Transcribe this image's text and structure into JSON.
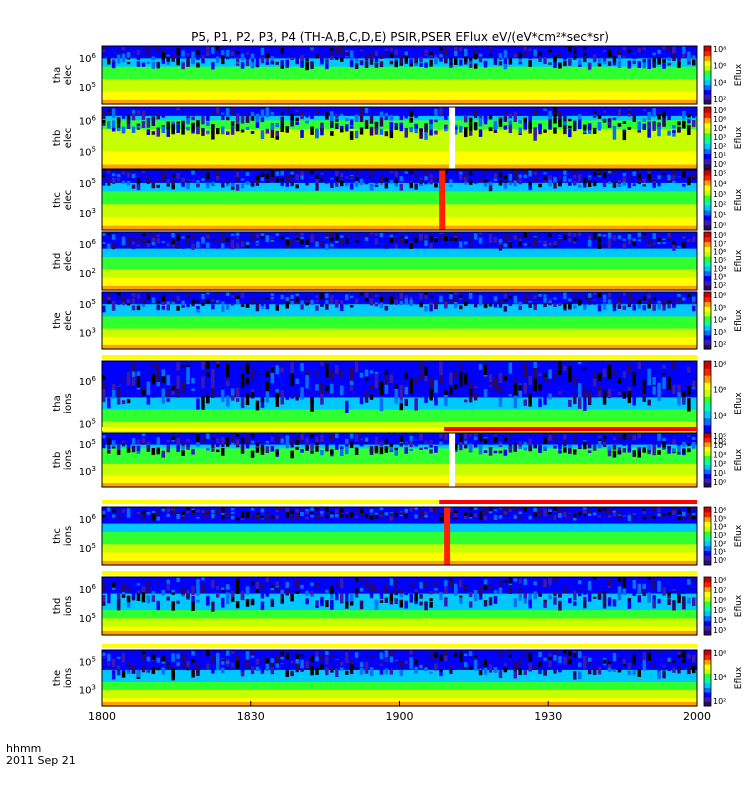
{
  "title": "P5, P1, P2, P3, P4 (TH-A,B,C,D,E) PSIR,PSER EFlux eV/(eV*cm²*sec*sr)",
  "colorbar_label": "Eflux",
  "footer": {
    "time_label": "hhmm",
    "date_label": "2011 Sep 21"
  },
  "colors": {
    "colormap": [
      "#000000",
      "#2a0a60",
      "#3c1ab0",
      "#0000ff",
      "#0070ff",
      "#00c8ff",
      "#00ffaa",
      "#30ff30",
      "#c8ff00",
      "#ffff00",
      "#ffa000",
      "#ff2000",
      "#d00000"
    ],
    "gap_bar_red": "#ff0000",
    "gap_bar_yellow": "#ffff00"
  },
  "chart_data": {
    "type": "heatmap",
    "x_axis": {
      "range": [
        "1800",
        "2000"
      ],
      "ticks": [
        "1800",
        "1830",
        "1900",
        "1930",
        "2000"
      ]
    },
    "panels": [
      {
        "probe": "tha",
        "species": "elec",
        "ylabel": [
          "tha",
          "elec"
        ],
        "y_ticks": [
          {
            "base": "10",
            "exp": "6"
          },
          {
            "base": "10",
            "exp": "5"
          }
        ],
        "colorbar_ticks": [
          "10⁸",
          "10⁶",
          "10⁴",
          "10²"
        ],
        "noise_top": 0.55,
        "bands": [
          0.18,
          0.38,
          0.6,
          0.78,
          0.92
        ],
        "gap_at": null
      },
      {
        "probe": "thb",
        "species": "elec",
        "ylabel": [
          "thb",
          "elec"
        ],
        "y_ticks": [
          {
            "base": "10",
            "exp": "6"
          },
          {
            "base": "10",
            "exp": "5"
          }
        ],
        "colorbar_ticks": [
          "10⁸",
          "10⁶",
          "10⁴",
          "10³",
          "10²",
          "10¹",
          "10⁰"
        ],
        "noise_top": 0.72,
        "bands": [
          0.12,
          0.2,
          0.35,
          0.75,
          0.92
        ],
        "gap_at": 1910
      },
      {
        "probe": "thc",
        "species": "elec",
        "ylabel": [
          "thc",
          "elec"
        ],
        "y_ticks": [
          {
            "base": "10",
            "exp": "5"
          },
          {
            "base": "10",
            "exp": "3"
          }
        ],
        "colorbar_ticks": [
          "10⁵",
          "10⁴",
          "10³",
          "10²",
          "10¹",
          "10⁰"
        ],
        "noise_top": 0.45,
        "bands": [
          0.2,
          0.35,
          0.6,
          0.8,
          0.93
        ],
        "gap_at": 1908
      },
      {
        "probe": "thd",
        "species": "elec",
        "ylabel": [
          "thd",
          "elec"
        ],
        "y_ticks": [
          {
            "base": "10",
            "exp": "6"
          },
          {
            "base": "10",
            "exp": "2"
          }
        ],
        "colorbar_ticks": [
          "10⁸",
          "10⁷",
          "10⁶",
          "10⁵",
          "10⁴",
          "10³",
          "10²"
        ],
        "noise_top": 0.4,
        "bands": [
          0.3,
          0.45,
          0.62,
          0.8,
          0.9
        ],
        "gap_at": null
      },
      {
        "probe": "the",
        "species": "elec",
        "ylabel": [
          "the",
          "elec"
        ],
        "y_ticks": [
          {
            "base": "10",
            "exp": "5"
          },
          {
            "base": "10",
            "exp": "3"
          }
        ],
        "colorbar_ticks": [
          "10⁶",
          "10⁵",
          "10⁴",
          "10³",
          "10²"
        ],
        "noise_top": 0.45,
        "bands": [
          0.25,
          0.45,
          0.62,
          0.8,
          0.92
        ],
        "gap_at": null
      },
      {
        "probe": "tha",
        "species": "ions",
        "ylabel": [
          "tha",
          "ions"
        ],
        "y_ticks": [
          {
            "base": "10",
            "exp": "6"
          },
          {
            "base": "10",
            "exp": "5"
          }
        ],
        "colorbar_ticks": [
          "10⁸",
          "10⁶",
          "10⁴",
          "10²"
        ],
        "noise_top": 0.85,
        "bands": [
          0.4,
          0.6,
          0.75,
          0.88,
          0.96
        ],
        "gap_at": null
      },
      {
        "probe": "thb",
        "species": "ions",
        "ylabel": [
          "thb",
          "ions"
        ],
        "y_ticks": [
          {
            "base": "10",
            "exp": "5"
          },
          {
            "base": "10",
            "exp": "3"
          }
        ],
        "colorbar_ticks": [
          "10⁵",
          "10⁴",
          "10³",
          "10²",
          "10¹",
          "10⁰"
        ],
        "noise_top": 0.6,
        "bands": [
          0.2,
          0.3,
          0.55,
          0.8,
          0.93
        ],
        "gap_at": 1910
      },
      {
        "probe": "thc",
        "species": "ions",
        "ylabel": [
          "thc",
          "ions"
        ],
        "y_ticks": [
          {
            "base": "10",
            "exp": "6"
          },
          {
            "base": "10",
            "exp": "5"
          }
        ],
        "colorbar_ticks": [
          "10⁶",
          "10⁵",
          "10⁴",
          "10³",
          "10²",
          "10¹",
          "10⁰"
        ],
        "noise_top": 0.3,
        "bands": [
          0.3,
          0.45,
          0.62,
          0.8,
          0.93
        ],
        "gap_at": 1909
      },
      {
        "probe": "thd",
        "species": "ions",
        "ylabel": [
          "thd",
          "ions"
        ],
        "y_ticks": [
          {
            "base": "10",
            "exp": "6"
          },
          {
            "base": "10",
            "exp": "5"
          }
        ],
        "colorbar_ticks": [
          "10⁸",
          "10⁷",
          "10⁶",
          "10⁵",
          "10⁴",
          "10³"
        ],
        "noise_top": 0.78,
        "bands": [
          0.3,
          0.55,
          0.75,
          0.88,
          0.96
        ],
        "gap_at": null
      },
      {
        "probe": "the",
        "species": "ions",
        "ylabel": [
          "the",
          "ions"
        ],
        "y_ticks": [
          {
            "base": "10",
            "exp": "5"
          },
          {
            "base": "10",
            "exp": "3"
          }
        ],
        "colorbar_ticks": [
          "10⁶",
          "10⁴",
          "10²"
        ],
        "noise_top": 0.7,
        "bands": [
          0.35,
          0.55,
          0.72,
          0.86,
          0.95
        ],
        "gap_at": null
      }
    ],
    "gap_bars": [
      {
        "after_panel": 4,
        "segments": [
          {
            "from": "1800",
            "to": "2000",
            "color": "yellow"
          }
        ]
      },
      {
        "after_panel": 5,
        "segments": [
          {
            "from": "1800",
            "to": "1909",
            "color": "yellow"
          },
          {
            "from": "1909",
            "to": "2000",
            "color": "red"
          }
        ]
      },
      {
        "after_panel": 6,
        "segments": [
          {
            "from": "1800",
            "to": "1908",
            "color": "yellow"
          },
          {
            "from": "1908",
            "to": "2000",
            "color": "red"
          }
        ]
      },
      {
        "after_panel": 7,
        "segments": [
          {
            "from": "1800",
            "to": "2000",
            "color": "yellow"
          }
        ]
      },
      {
        "after_panel": 8,
        "segments": [
          {
            "from": "1800",
            "to": "2000",
            "color": "yellow"
          }
        ]
      }
    ]
  }
}
